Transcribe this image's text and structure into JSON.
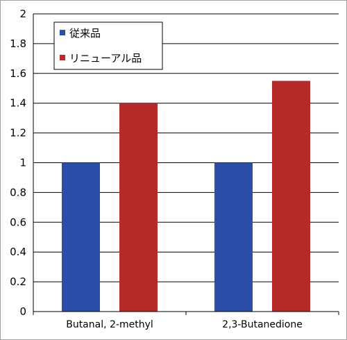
{
  "chart_data": {
    "type": "bar",
    "categories": [
      "Butanal, 2-methyl",
      "2,3-Butanedione"
    ],
    "series": [
      {
        "name": "従来品",
        "color": "#2b4fa8",
        "values": [
          1.0,
          1.0
        ]
      },
      {
        "name": "リニューアル品",
        "color": "#b72a2a",
        "values": [
          1.4,
          1.55
        ]
      }
    ],
    "ylim": [
      0,
      2
    ],
    "yticks": [
      "0",
      "0.2",
      "0.4",
      "0.6",
      "0.8",
      "1",
      "1.2",
      "1.4",
      "1.6",
      "1.8",
      "2"
    ],
    "grid": "horizontal",
    "legend_position": "top-left",
    "title": "",
    "xlabel": "",
    "ylabel": ""
  }
}
